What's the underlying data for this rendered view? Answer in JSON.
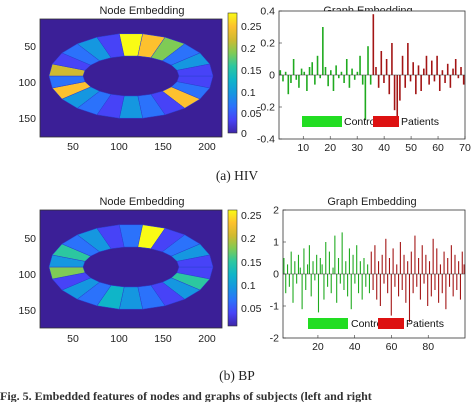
{
  "colors": {
    "background_map": "#3b1f97",
    "controls": "#1faa1f",
    "patients": "#a31515",
    "legend_controls": "#22dd22",
    "legend_patients": "#dd1111",
    "colormap": [
      "#3e26a8",
      "#4743f7",
      "#2b72fb",
      "#1597e0",
      "#0fb5c8",
      "#2cc7a0",
      "#7fcb55",
      "#d0ba30",
      "#fdc12e",
      "#f9fb15"
    ]
  },
  "caption_hiv": "(a)  HIV",
  "caption_bp": "(b)  BP",
  "footer_text": "Fig. 5.   Embedded features of nodes and graphs of subjects (left and right",
  "chart_data": [
    {
      "type": "heatmap",
      "title": "Node Embedding",
      "x_ticks": [
        "50",
        "100",
        "150",
        "200"
      ],
      "y_ticks": [
        "50",
        "100",
        "150"
      ],
      "colorbar_ticks": [
        "0.25",
        "0.2",
        "0.15",
        "0.1",
        "0.05",
        "0"
      ],
      "colorbar_range": [
        0,
        0.28
      ]
    },
    {
      "type": "bar",
      "title": "Graph Embedding",
      "x_ticks": [
        "10",
        "20",
        "30",
        "40",
        "50",
        "60",
        "70"
      ],
      "y_ticks": [
        "0.4",
        "0.2",
        "0",
        "-0.2",
        "-0.4"
      ],
      "xlim": [
        1,
        70
      ],
      "ylim": [
        -0.4,
        0.4
      ],
      "legend": [
        "Controls",
        "Patients"
      ],
      "legend_placement": "bottom-center",
      "control_values": [
        0.03,
        -0.04,
        0.02,
        -0.12,
        -0.05,
        0.1,
        -0.03,
        -0.08,
        0.04,
        0.02,
        -0.1,
        0.05,
        0.08,
        -0.06,
        0.12,
        -0.02,
        0.3,
        0.05,
        -0.07,
        0.03,
        -0.1,
        0.06,
        -0.02,
        0.02,
        -0.05,
        0.1,
        -0.08,
        0.04,
        -0.03,
        0.02,
        0.12,
        -0.06,
        -0.28,
        0.18,
        -0.06
      ],
      "patient_values": [
        0.38,
        0.05,
        -0.08,
        0.15,
        -0.05,
        0.1,
        -0.12,
        0.2,
        -0.22,
        -0.27,
        -0.16,
        0.12,
        -0.08,
        0.2,
        -0.04,
        0.08,
        -0.12,
        0.06,
        -0.1,
        0.04,
        0.12,
        -0.06,
        0.09,
        -0.04,
        0.12,
        -0.1,
        0.03,
        -0.05,
        0.07,
        -0.08,
        0.04,
        0.1,
        -0.02,
        0.05,
        -0.06
      ]
    },
    {
      "type": "heatmap",
      "title": "Node Embedding",
      "x_ticks": [
        "50",
        "100",
        "150",
        "200"
      ],
      "y_ticks": [
        "50",
        "100",
        "150"
      ],
      "colorbar_ticks": [
        "0.25",
        "0.2",
        "0.15",
        "0.1",
        "0.05"
      ],
      "colorbar_range": [
        0,
        0.26
      ]
    },
    {
      "type": "bar",
      "title": "Graph Embedding",
      "x_ticks": [
        "20",
        "40",
        "60",
        "80"
      ],
      "y_ticks": [
        "2",
        "1",
        "0",
        "-1",
        "-2"
      ],
      "xlim": [
        1,
        100
      ],
      "ylim": [
        -2,
        2
      ],
      "legend": [
        "Controls",
        "Patients"
      ],
      "legend_placement": "bottom-center",
      "control_values": [
        0.5,
        -0.6,
        0.3,
        -0.4,
        0.7,
        -0.9,
        0.4,
        -0.3,
        0.6,
        0.2,
        -1.1,
        0.8,
        -0.5,
        0.3,
        0.9,
        -0.7,
        0.4,
        -0.2,
        0.6,
        -1.2,
        0.5,
        0.3,
        -0.8,
        1.0,
        -0.4,
        0.7,
        -0.6,
        0.2,
        1.2,
        -0.9,
        0.5,
        -0.3,
        1.3,
        -0.5,
        0.4,
        -0.7,
        0.8,
        -1.1,
        0.6,
        -0.3,
        0.9,
        -0.6,
        0.4,
        -0.8,
        0.5,
        -0.4,
        0.3,
        -0.6
      ],
      "patient_values": [
        0.7,
        -0.5,
        0.9,
        -0.8,
        0.4,
        -1.0,
        0.6,
        -0.3,
        1.1,
        -0.6,
        0.5,
        -1.3,
        0.8,
        -0.4,
        0.3,
        -0.7,
        1.0,
        -0.5,
        0.6,
        -0.9,
        0.4,
        -1.5,
        0.7,
        -0.6,
        1.2,
        -0.4,
        0.5,
        -0.8,
        0.9,
        -0.3,
        0.6,
        -1.0,
        0.4,
        -0.7,
        1.1,
        -0.5,
        0.8,
        -0.9,
        0.3,
        -0.6,
        0.7,
        -1.1,
        0.5,
        -0.4,
        0.9,
        -0.7,
        0.6,
        -0.5,
        0.4,
        -0.8,
        0.7,
        0.3
      ]
    }
  ]
}
